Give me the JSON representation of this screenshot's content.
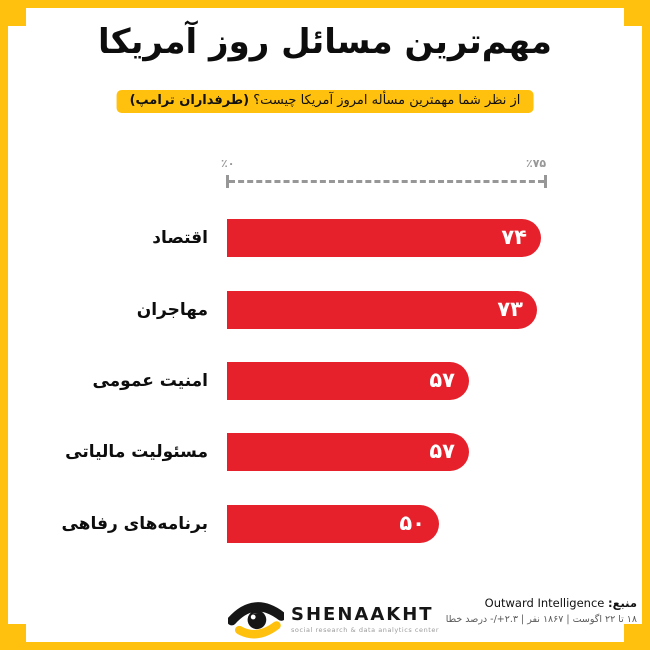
{
  "colors": {
    "accent_yellow": "#FFC10E",
    "bar_red": "#E6212B",
    "axis_gray": "#979797"
  },
  "header": {
    "title": "مهم‌ترین مسائل روز آمریکا",
    "subtitle": "از نظر شما مهمترین مسأله امروز آمریکا چیست؟",
    "subtitle_bold": "(طرفداران ترامپ)"
  },
  "chart_data": {
    "type": "bar",
    "orientation": "horizontal",
    "title": "مهم‌ترین مسائل روز آمریکا",
    "categories": [
      "اقتصاد",
      "مهاجران",
      "امنیت عمومی",
      "مسئولیت مالیاتی",
      "برنامه‌های رفاهی"
    ],
    "values": [
      74,
      73,
      57,
      57,
      50
    ],
    "value_labels": [
      "۷۴",
      "۷۳",
      "۵۷",
      "۵۷",
      "۵۰"
    ],
    "xlim": [
      0,
      75
    ],
    "axis_tick_labels": {
      "min": "٪۰",
      "max": "٪۷۵"
    },
    "grid": false,
    "bar_color": "#E6212B",
    "value_label_color": "#ffffff"
  },
  "footer": {
    "logo_name": "SHENAAKHT",
    "logo_subtext": "social research & data analytics center",
    "source_label": "منبع:",
    "source_value": "Outward Intelligence",
    "survey_details": "۱۸ تا ۲۲ اگوست | ۱۸۶۷ نفر | ۲.۳+/- درصد خطا"
  }
}
